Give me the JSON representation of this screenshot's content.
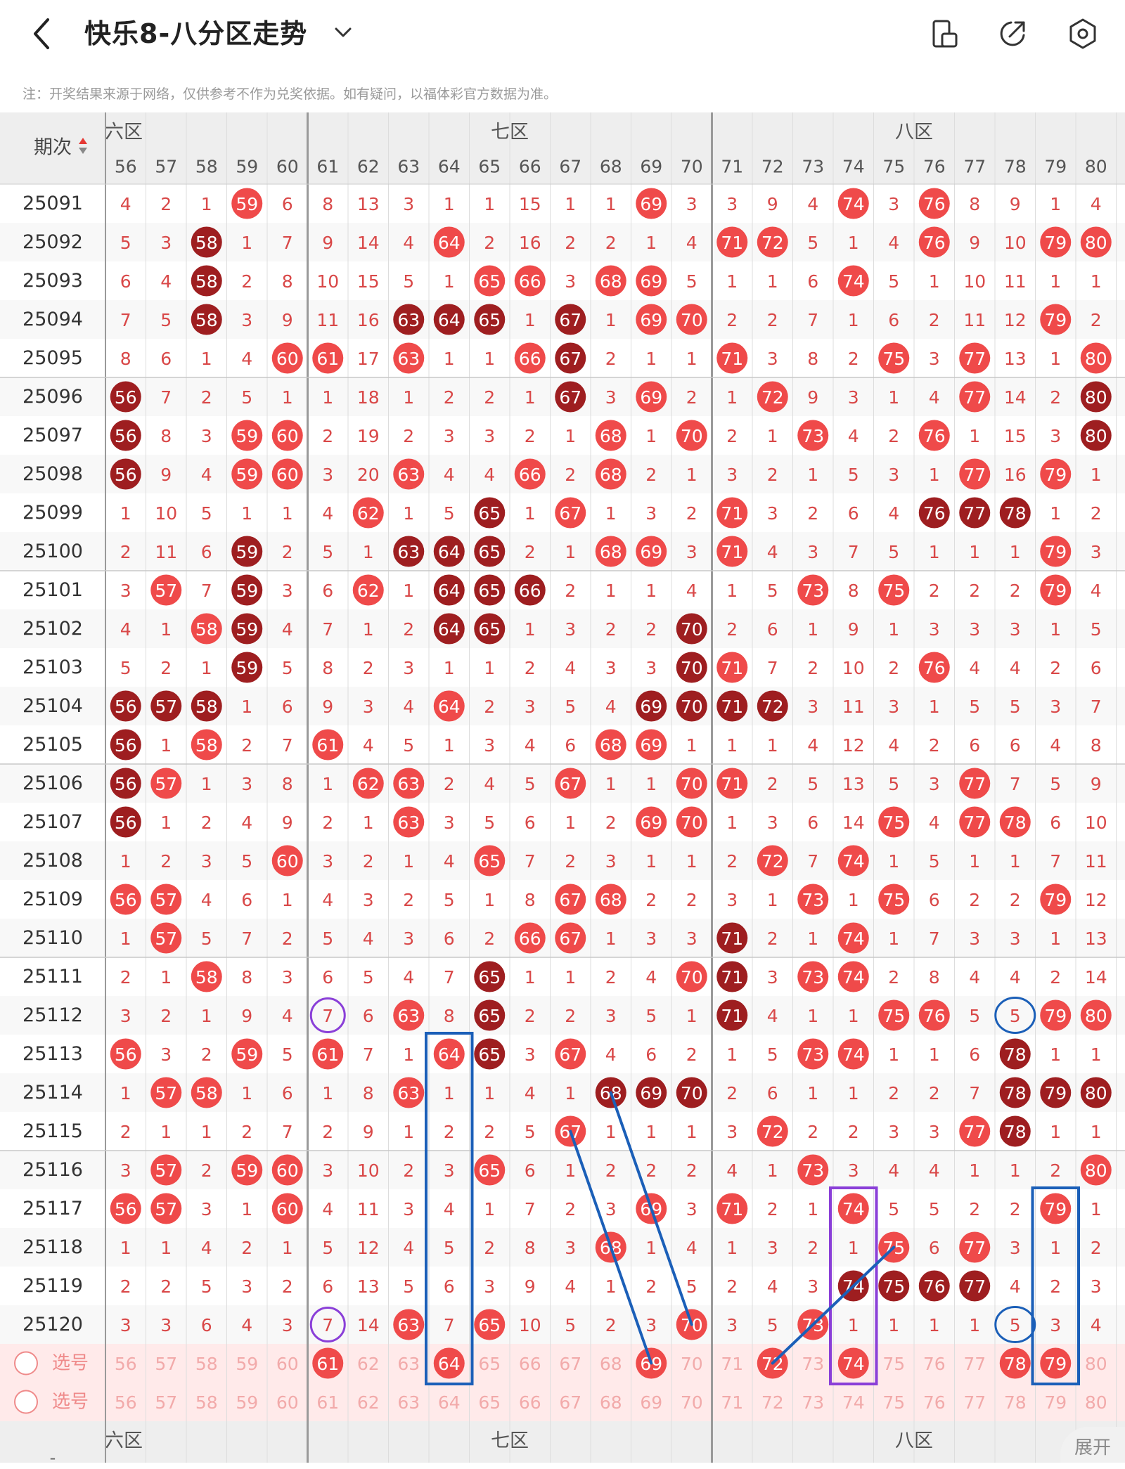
{
  "header": {
    "title": "快乐8-八分区走势",
    "icons": [
      "back-arrow-icon",
      "chevron-down-icon",
      "chart-switch-icon",
      "share-icon",
      "settings-icon"
    ]
  },
  "note": "注：开奖结果来源于网络，仅供参考不作为兑奖依据。如有疑问，以福体彩官方数据为准。",
  "table": {
    "period_header": "期次",
    "zones": [
      "六区",
      "七区",
      "八区"
    ],
    "zone_partial_label": "六区",
    "columns": [
      56,
      57,
      58,
      59,
      60,
      61,
      62,
      63,
      64,
      65,
      66,
      67,
      68,
      69,
      70,
      71,
      72,
      73,
      74,
      75,
      76,
      77,
      78,
      79,
      80
    ],
    "rows": [
      {
        "period": "25091",
        "v": [
          "4",
          "2",
          "1",
          "h59",
          "6",
          "8",
          "13",
          "3",
          "1",
          "1",
          "15",
          "1",
          "1",
          "h69",
          "3",
          "3",
          "9",
          "4",
          "h74",
          "3",
          "h76",
          "8",
          "9",
          "1",
          "4"
        ]
      },
      {
        "period": "25092",
        "v": [
          "5",
          "3",
          "d58",
          "1",
          "7",
          "9",
          "14",
          "4",
          "h64",
          "2",
          "16",
          "2",
          "2",
          "1",
          "4",
          "h71",
          "h72",
          "5",
          "1",
          "4",
          "h76",
          "9",
          "10",
          "h79",
          "h80"
        ]
      },
      {
        "period": "25093",
        "v": [
          "6",
          "4",
          "d58",
          "2",
          "8",
          "10",
          "15",
          "5",
          "1",
          "h65",
          "h66",
          "3",
          "h68",
          "h69",
          "5",
          "1",
          "1",
          "6",
          "h74",
          "5",
          "1",
          "10",
          "11",
          "1",
          "1"
        ]
      },
      {
        "period": "25094",
        "v": [
          "7",
          "5",
          "d58",
          "3",
          "9",
          "11",
          "16",
          "d63",
          "d64",
          "d65",
          "1",
          "d67",
          "1",
          "h69",
          "h70",
          "2",
          "2",
          "7",
          "1",
          "6",
          "2",
          "11",
          "12",
          "h79",
          "2"
        ]
      },
      {
        "period": "25095",
        "v": [
          "8",
          "6",
          "1",
          "4",
          "h60",
          "h61",
          "17",
          "h63",
          "1",
          "1",
          "h66",
          "d67",
          "2",
          "1",
          "1",
          "h71",
          "3",
          "8",
          "2",
          "h75",
          "3",
          "h77",
          "13",
          "1",
          "h80"
        ]
      },
      {
        "period": "25096",
        "v": [
          "d56",
          "7",
          "2",
          "5",
          "1",
          "1",
          "18",
          "1",
          "2",
          "2",
          "1",
          "d67",
          "3",
          "h69",
          "2",
          "1",
          "h72",
          "9",
          "3",
          "1",
          "4",
          "h77",
          "14",
          "2",
          "d80"
        ]
      },
      {
        "period": "25097",
        "v": [
          "d56",
          "8",
          "3",
          "h59",
          "h60",
          "2",
          "19",
          "2",
          "3",
          "3",
          "2",
          "1",
          "h68",
          "1",
          "h70",
          "2",
          "1",
          "h73",
          "4",
          "2",
          "h76",
          "1",
          "15",
          "3",
          "d80"
        ]
      },
      {
        "period": "25098",
        "v": [
          "d56",
          "9",
          "4",
          "h59",
          "h60",
          "3",
          "20",
          "h63",
          "4",
          "4",
          "h66",
          "2",
          "h68",
          "2",
          "1",
          "3",
          "2",
          "1",
          "5",
          "3",
          "1",
          "h77",
          "16",
          "h79",
          "1"
        ]
      },
      {
        "period": "25099",
        "v": [
          "1",
          "10",
          "5",
          "1",
          "1",
          "4",
          "h62",
          "1",
          "5",
          "d65",
          "1",
          "h67",
          "1",
          "3",
          "2",
          "h71",
          "3",
          "2",
          "6",
          "4",
          "d76",
          "d77",
          "d78",
          "1",
          "2"
        ]
      },
      {
        "period": "25100",
        "v": [
          "2",
          "11",
          "6",
          "d59",
          "2",
          "5",
          "1",
          "d63",
          "d64",
          "d65",
          "2",
          "1",
          "h68",
          "h69",
          "3",
          "h71",
          "4",
          "3",
          "7",
          "5",
          "1",
          "1",
          "1",
          "h79",
          "3"
        ]
      },
      {
        "period": "25101",
        "v": [
          "3",
          "h57",
          "7",
          "d59",
          "3",
          "6",
          "h62",
          "1",
          "d64",
          "d65",
          "d66",
          "2",
          "1",
          "1",
          "4",
          "1",
          "5",
          "h73",
          "8",
          "h75",
          "2",
          "2",
          "2",
          "h79",
          "4"
        ]
      },
      {
        "period": "25102",
        "v": [
          "4",
          "1",
          "h58",
          "d59",
          "4",
          "7",
          "1",
          "2",
          "d64",
          "d65",
          "1",
          "3",
          "2",
          "2",
          "d70",
          "2",
          "6",
          "1",
          "9",
          "1",
          "3",
          "3",
          "3",
          "1",
          "5"
        ]
      },
      {
        "period": "25103",
        "v": [
          "5",
          "2",
          "1",
          "d59",
          "5",
          "8",
          "2",
          "3",
          "1",
          "1",
          "2",
          "4",
          "3",
          "3",
          "d70",
          "h71",
          "7",
          "2",
          "10",
          "2",
          "h76",
          "4",
          "4",
          "2",
          "6"
        ]
      },
      {
        "period": "25104",
        "v": [
          "d56",
          "d57",
          "d58",
          "1",
          "6",
          "9",
          "3",
          "4",
          "h64",
          "2",
          "3",
          "5",
          "4",
          "d69",
          "d70",
          "d71",
          "d72",
          "3",
          "11",
          "3",
          "1",
          "5",
          "5",
          "3",
          "7"
        ]
      },
      {
        "period": "25105",
        "v": [
          "d56",
          "1",
          "h58",
          "2",
          "7",
          "h61",
          "4",
          "5",
          "1",
          "3",
          "4",
          "6",
          "h68",
          "h69",
          "1",
          "1",
          "1",
          "4",
          "12",
          "4",
          "2",
          "6",
          "6",
          "4",
          "8"
        ]
      },
      {
        "period": "25106",
        "v": [
          "d56",
          "h57",
          "1",
          "3",
          "8",
          "1",
          "h62",
          "h63",
          "2",
          "4",
          "5",
          "h67",
          "1",
          "1",
          "h70",
          "h71",
          "2",
          "5",
          "13",
          "5",
          "3",
          "h77",
          "7",
          "5",
          "9"
        ]
      },
      {
        "period": "25107",
        "v": [
          "d56",
          "1",
          "2",
          "4",
          "9",
          "2",
          "1",
          "h63",
          "3",
          "5",
          "6",
          "1",
          "2",
          "h69",
          "h70",
          "1",
          "3",
          "6",
          "14",
          "h75",
          "4",
          "h77",
          "h78",
          "6",
          "10"
        ]
      },
      {
        "period": "25108",
        "v": [
          "1",
          "2",
          "3",
          "5",
          "h60",
          "3",
          "2",
          "1",
          "4",
          "h65",
          "7",
          "2",
          "3",
          "1",
          "1",
          "2",
          "h72",
          "7",
          "h74",
          "1",
          "5",
          "1",
          "1",
          "7",
          "11"
        ]
      },
      {
        "period": "25109",
        "v": [
          "h56",
          "h57",
          "4",
          "6",
          "1",
          "4",
          "3",
          "2",
          "5",
          "1",
          "8",
          "h67",
          "h68",
          "2",
          "2",
          "3",
          "1",
          "h73",
          "1",
          "h75",
          "6",
          "2",
          "2",
          "h79",
          "12"
        ]
      },
      {
        "period": "25110",
        "v": [
          "1",
          "h57",
          "5",
          "7",
          "2",
          "5",
          "4",
          "3",
          "6",
          "2",
          "h66",
          "h67",
          "1",
          "3",
          "3",
          "d71",
          "2",
          "1",
          "h74",
          "1",
          "7",
          "3",
          "3",
          "1",
          "13"
        ]
      },
      {
        "period": "25111",
        "v": [
          "2",
          "1",
          "h58",
          "8",
          "3",
          "6",
          "5",
          "4",
          "7",
          "d65",
          "1",
          "1",
          "2",
          "4",
          "h70",
          "d71",
          "3",
          "h73",
          "h74",
          "2",
          "8",
          "4",
          "4",
          "2",
          "14"
        ]
      },
      {
        "period": "25112",
        "v": [
          "3",
          "2",
          "1",
          "9",
          "4",
          "7",
          "6",
          "h63",
          "8",
          "d65",
          "2",
          "2",
          "3",
          "5",
          "1",
          "d71",
          "4",
          "1",
          "1",
          "h75",
          "h76",
          "5",
          "5",
          "h79",
          "h80"
        ]
      },
      {
        "period": "25113",
        "v": [
          "h56",
          "3",
          "2",
          "h59",
          "5",
          "h61",
          "7",
          "1",
          "h64",
          "d65",
          "3",
          "h67",
          "4",
          "6",
          "2",
          "1",
          "5",
          "h73",
          "h74",
          "1",
          "1",
          "6",
          "d78",
          "1",
          "1"
        ]
      },
      {
        "period": "25114",
        "v": [
          "1",
          "h57",
          "h58",
          "1",
          "6",
          "1",
          "8",
          "h63",
          "1",
          "1",
          "4",
          "1",
          "d68",
          "d69",
          "d70",
          "2",
          "6",
          "1",
          "1",
          "2",
          "2",
          "7",
          "d78",
          "d79",
          "d80"
        ]
      },
      {
        "period": "25115",
        "v": [
          "2",
          "1",
          "1",
          "2",
          "7",
          "2",
          "9",
          "1",
          "2",
          "2",
          "5",
          "h67",
          "1",
          "1",
          "1",
          "3",
          "h72",
          "2",
          "2",
          "3",
          "3",
          "h77",
          "d78",
          "1",
          "1"
        ]
      },
      {
        "period": "25116",
        "v": [
          "3",
          "h57",
          "2",
          "h59",
          "h60",
          "3",
          "10",
          "2",
          "3",
          "h65",
          "6",
          "1",
          "2",
          "2",
          "2",
          "4",
          "1",
          "h73",
          "3",
          "4",
          "4",
          "1",
          "1",
          "2",
          "h80"
        ]
      },
      {
        "period": "25117",
        "v": [
          "h56",
          "h57",
          "3",
          "1",
          "h60",
          "4",
          "11",
          "3",
          "4",
          "1",
          "7",
          "2",
          "3",
          "h69",
          "3",
          "h71",
          "2",
          "1",
          "h74",
          "5",
          "5",
          "2",
          "2",
          "h79",
          "1"
        ]
      },
      {
        "period": "25118",
        "v": [
          "1",
          "1",
          "4",
          "2",
          "1",
          "5",
          "12",
          "4",
          "5",
          "2",
          "8",
          "3",
          "h68",
          "1",
          "4",
          "1",
          "3",
          "2",
          "1",
          "h75",
          "6",
          "h77",
          "3",
          "1",
          "2"
        ]
      },
      {
        "period": "25119",
        "v": [
          "2",
          "2",
          "5",
          "3",
          "2",
          "6",
          "13",
          "5",
          "6",
          "3",
          "9",
          "4",
          "1",
          "2",
          "5",
          "2",
          "4",
          "3",
          "d74",
          "d75",
          "d76",
          "d77",
          "4",
          "2",
          "3"
        ]
      },
      {
        "period": "25120",
        "v": [
          "3",
          "3",
          "6",
          "4",
          "3",
          "7",
          "14",
          "h63",
          "7",
          "h65",
          "10",
          "5",
          "2",
          "3",
          "h70",
          "3",
          "5",
          "h73",
          "1",
          "1",
          "1",
          "1",
          "5",
          "3",
          "4"
        ]
      }
    ],
    "select_rows": [
      {
        "label": "选号",
        "selected": [
          "61",
          "64",
          "69",
          "72",
          "74",
          "78",
          "79"
        ]
      },
      {
        "label": "选号",
        "selected": []
      }
    ]
  },
  "annotations": {
    "circle_purple": [
      [
        "25112",
        "61"
      ],
      [
        "25120",
        "61"
      ]
    ],
    "circle_blue": [
      [
        "25112",
        "78"
      ],
      [
        "25120",
        "78"
      ]
    ],
    "rect_blue": [
      [
        "25113",
        "64",
        "select-1"
      ],
      [
        "25117",
        "79",
        "select-1"
      ]
    ],
    "rect_purple": [
      [
        "25117",
        "74",
        "select-1"
      ]
    ],
    "lines_blue": [
      [
        "25115",
        "67",
        "select-1",
        "69"
      ],
      [
        "25114",
        "68",
        "25120",
        "70"
      ],
      [
        "25118",
        "75",
        "select-1",
        "72"
      ]
    ]
  },
  "expand_label": "展开",
  "colors": {
    "ball_red": "#ef4a4a",
    "ball_dark": "#9e1e20",
    "number_red": "#d94848",
    "annot_blue": "#1b5fb8",
    "annot_purple": "#8a3fd8",
    "header_bg": "#eeeeee",
    "select_bg": "#ffeaea"
  }
}
